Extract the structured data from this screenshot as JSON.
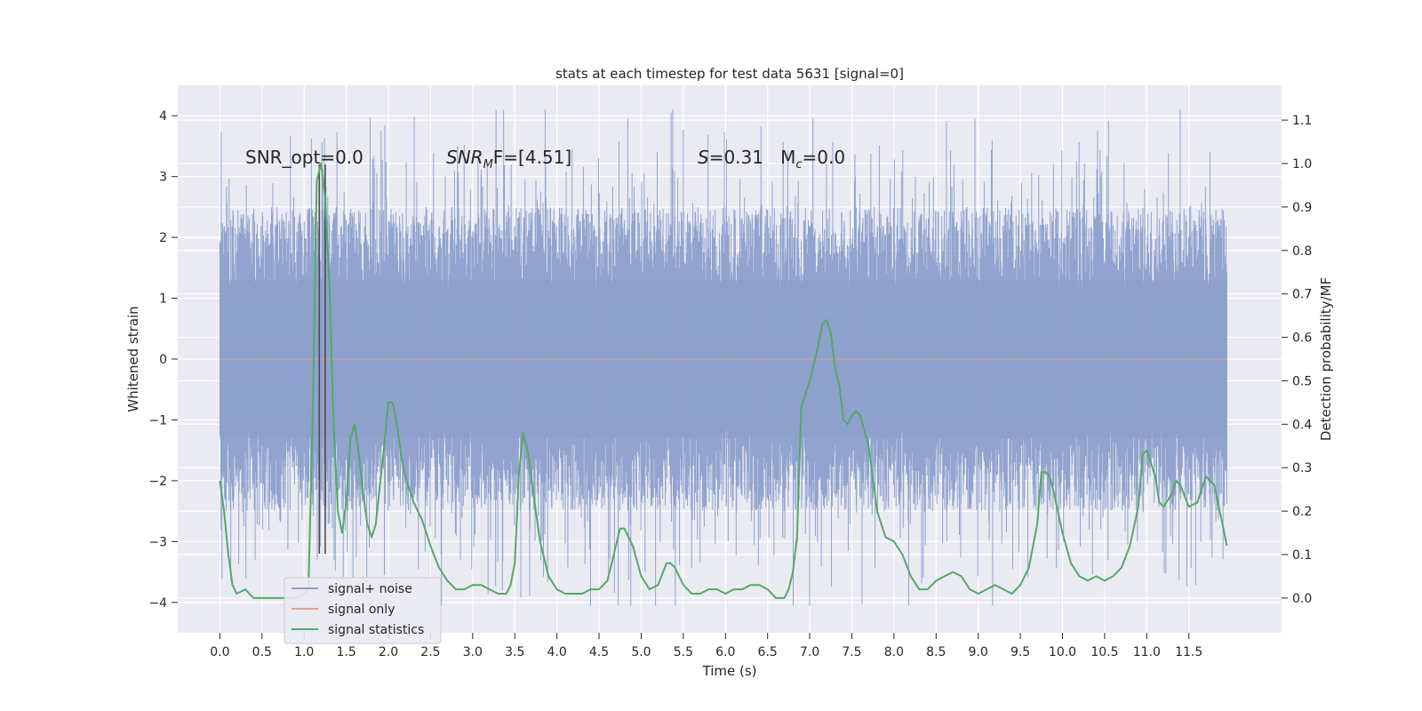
{
  "chart_data": {
    "type": "line",
    "title": "stats at each timestep for test data 5631 [signal=0]",
    "xlabel": "Time (s)",
    "ylabel": "Whitened strain",
    "y2label": "Detection probability/MF",
    "xlim": [
      -0.5,
      12.6
    ],
    "ylim": [
      -4.5,
      4.5
    ],
    "y2lim": [
      -0.08,
      1.18
    ],
    "x_ticks": [
      0.0,
      0.5,
      1.0,
      1.5,
      2.0,
      2.5,
      3.0,
      3.5,
      4.0,
      4.5,
      5.0,
      5.5,
      6.0,
      6.5,
      7.0,
      7.5,
      8.0,
      8.5,
      9.0,
      9.5,
      10.0,
      10.5,
      11.0,
      11.5
    ],
    "x_tick_labels": [
      "0.0",
      "0.5",
      "1.0",
      "1.5",
      "2.0",
      "2.5",
      "3.0",
      "3.5",
      "4.0",
      "4.5",
      "5.0",
      "5.5",
      "6.0",
      "6.5",
      "7.0",
      "7.5",
      "8.0",
      "8.5",
      "9.0",
      "9.5",
      "10.0",
      "10.5",
      "11.0",
      "11.5"
    ],
    "y_ticks": [
      -4,
      -3,
      -2,
      -1,
      0,
      1,
      2,
      3,
      4
    ],
    "y_tick_labels": [
      "−4",
      "−3",
      "−2",
      "−1",
      "0",
      "1",
      "2",
      "3",
      "4"
    ],
    "y2_ticks": [
      0.0,
      0.1,
      0.2,
      0.3,
      0.4,
      0.5,
      0.6,
      0.7,
      0.8,
      0.9,
      1.0,
      1.1
    ],
    "y2_tick_labels": [
      "0.0",
      "0.1",
      "0.2",
      "0.3",
      "0.4",
      "0.5",
      "0.6",
      "0.7",
      "0.8",
      "0.9",
      "1.0",
      "1.1"
    ],
    "grid": true,
    "legend_position": "lower-left",
    "annotations": [
      {
        "prefix": "SNR_opt=0.0",
        "sub": "",
        "suffix": ""
      },
      {
        "prefix": "SNR",
        "sub": "M",
        "suffix": "F=[4.51]"
      },
      {
        "prefix": "S=0.31   M",
        "sub": "c",
        "suffix": "=0.0"
      }
    ],
    "markers": [
      {
        "x": [
          1.18,
          1.18
        ],
        "y": [
          -3.2,
          3.2
        ]
      },
      {
        "x": [
          1.25,
          1.25
        ],
        "y": [
          -3.2,
          3.2
        ]
      }
    ],
    "noise_envelope": {
      "x": [
        0.0,
        0.5,
        1.0,
        1.5,
        2.0,
        2.5,
        3.0,
        3.5,
        4.0,
        4.5,
        5.0,
        5.5,
        6.0,
        6.5,
        7.0,
        7.5,
        8.0,
        8.5,
        9.0,
        9.5,
        10.0,
        10.5,
        11.0,
        11.5,
        11.95
      ],
      "typical_max": 2.5,
      "typical_min": -2.5,
      "peak_max": 4.1,
      "peak_min": -4.05
    },
    "series": [
      {
        "name": "signal+ noise",
        "color": "#8c9fcb",
        "axis": "left",
        "style": "dense"
      },
      {
        "name": "signal only",
        "color": "#e3a48b",
        "axis": "left",
        "x": [
          0.0,
          11.95
        ],
        "y": [
          0.0,
          0.0
        ]
      },
      {
        "name": "signal statistics",
        "color": "#55a868",
        "axis": "right",
        "x": [
          0.0,
          0.05,
          0.1,
          0.15,
          0.2,
          0.3,
          0.4,
          0.5,
          0.6,
          0.7,
          0.8,
          0.9,
          1.0,
          1.05,
          1.1,
          1.15,
          1.2,
          1.25,
          1.3,
          1.35,
          1.4,
          1.45,
          1.5,
          1.55,
          1.6,
          1.65,
          1.7,
          1.75,
          1.8,
          1.85,
          1.9,
          1.95,
          2.0,
          2.05,
          2.1,
          2.15,
          2.2,
          2.3,
          2.4,
          2.5,
          2.6,
          2.7,
          2.8,
          2.9,
          3.0,
          3.1,
          3.2,
          3.3,
          3.4,
          3.45,
          3.5,
          3.55,
          3.6,
          3.65,
          3.7,
          3.8,
          3.9,
          4.0,
          4.1,
          4.2,
          4.3,
          4.4,
          4.5,
          4.6,
          4.7,
          4.75,
          4.8,
          4.9,
          5.0,
          5.1,
          5.2,
          5.3,
          5.35,
          5.4,
          5.5,
          5.6,
          5.7,
          5.8,
          5.9,
          6.0,
          6.1,
          6.2,
          6.3,
          6.4,
          6.5,
          6.6,
          6.7,
          6.75,
          6.8,
          6.85,
          6.9,
          7.0,
          7.1,
          7.15,
          7.2,
          7.25,
          7.3,
          7.35,
          7.4,
          7.45,
          7.5,
          7.55,
          7.6,
          7.7,
          7.8,
          7.9,
          8.0,
          8.1,
          8.2,
          8.3,
          8.4,
          8.5,
          8.6,
          8.7,
          8.8,
          8.9,
          9.0,
          9.1,
          9.2,
          9.3,
          9.4,
          9.5,
          9.6,
          9.7,
          9.75,
          9.8,
          9.85,
          9.9,
          10.0,
          10.1,
          10.2,
          10.3,
          10.4,
          10.5,
          10.6,
          10.7,
          10.8,
          10.9,
          10.95,
          11.0,
          11.1,
          11.15,
          11.2,
          11.3,
          11.35,
          11.4,
          11.5,
          11.6,
          11.7,
          11.8,
          11.9,
          11.95
        ],
        "y": [
          0.27,
          0.2,
          0.1,
          0.03,
          0.01,
          0.02,
          0.0,
          0.0,
          0.0,
          0.0,
          0.0,
          0.0,
          0.01,
          0.02,
          0.4,
          0.96,
          1.0,
          0.92,
          0.72,
          0.4,
          0.2,
          0.15,
          0.22,
          0.37,
          0.4,
          0.33,
          0.24,
          0.17,
          0.14,
          0.17,
          0.26,
          0.35,
          0.45,
          0.45,
          0.4,
          0.33,
          0.28,
          0.22,
          0.18,
          0.12,
          0.07,
          0.04,
          0.02,
          0.02,
          0.03,
          0.03,
          0.02,
          0.01,
          0.01,
          0.03,
          0.08,
          0.29,
          0.38,
          0.34,
          0.27,
          0.13,
          0.05,
          0.02,
          0.01,
          0.01,
          0.01,
          0.02,
          0.02,
          0.04,
          0.12,
          0.16,
          0.16,
          0.12,
          0.05,
          0.02,
          0.03,
          0.08,
          0.08,
          0.07,
          0.03,
          0.01,
          0.01,
          0.02,
          0.02,
          0.01,
          0.02,
          0.02,
          0.03,
          0.03,
          0.02,
          0.0,
          0.0,
          0.02,
          0.06,
          0.14,
          0.44,
          0.5,
          0.58,
          0.63,
          0.64,
          0.61,
          0.53,
          0.49,
          0.41,
          0.4,
          0.42,
          0.43,
          0.42,
          0.35,
          0.2,
          0.14,
          0.13,
          0.1,
          0.05,
          0.02,
          0.02,
          0.04,
          0.05,
          0.06,
          0.05,
          0.02,
          0.01,
          0.02,
          0.03,
          0.02,
          0.01,
          0.03,
          0.07,
          0.17,
          0.29,
          0.29,
          0.28,
          0.24,
          0.15,
          0.08,
          0.05,
          0.04,
          0.05,
          0.04,
          0.05,
          0.07,
          0.12,
          0.21,
          0.33,
          0.34,
          0.28,
          0.22,
          0.21,
          0.24,
          0.27,
          0.26,
          0.21,
          0.22,
          0.28,
          0.26,
          0.17,
          0.12
        ]
      }
    ]
  }
}
